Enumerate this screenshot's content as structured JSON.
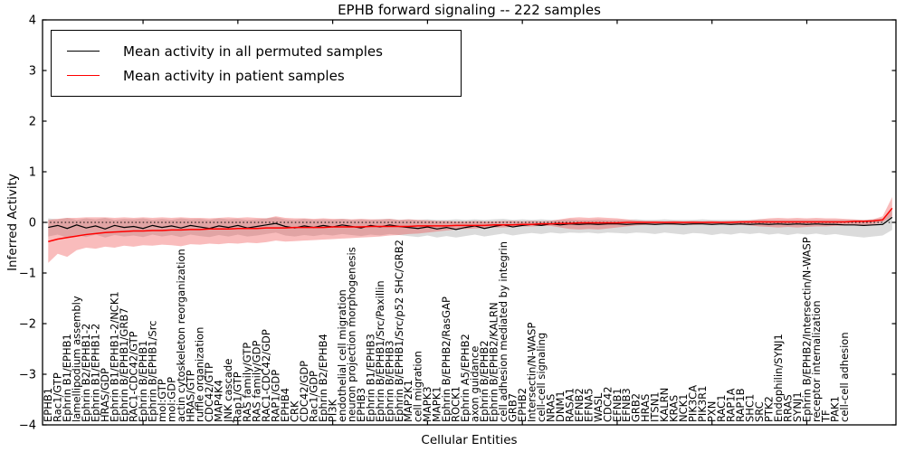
{
  "figure": {
    "title": "EPHB forward signaling -- 222 samples",
    "xlabel": "Cellular Entities",
    "ylabel": "Inferred Activity"
  },
  "legend": {
    "entries": [
      {
        "label": "Mean activity in all permuted samples",
        "color": "#000000"
      },
      {
        "label": "Mean activity in patient samples",
        "color": "#ff0000"
      }
    ]
  },
  "chart_data": {
    "type": "line",
    "title": "EPHB forward signaling -- 222 samples",
    "xlabel": "Cellular Entities",
    "ylabel": "Inferred Activity",
    "ylim": [
      -4,
      4
    ],
    "y_tick_values": [
      -4,
      -3,
      -2,
      -1,
      0,
      1,
      2,
      3,
      4
    ],
    "y_tick_labels": [
      "−4",
      "−3",
      "−2",
      "−1",
      "0",
      "1",
      "2",
      "3",
      "4"
    ],
    "x_major_tick_every": 10,
    "grid": false,
    "legend_position": "upper left",
    "zero_line": {
      "y": 0,
      "style": "dotted",
      "color": "#000000"
    },
    "categories": [
      "EPHB1",
      "Rac1/GTP",
      "Ephrin B1/EPHB1",
      "lamellipodium assembly",
      "Ephrin B2/EPHB1-2",
      "Ephrin B1/EPHB1-2",
      "HRAS/GDP",
      "Ephrin B1/EPHB1-2/NCK1",
      "Ephrin B/EPHB1/GRB7",
      "RAC1-CDC42/GTP",
      "Ephrin B/EPHB1",
      "Ephrin B/EPHB1/Src",
      "mol:GTP",
      "mol:GDP",
      "actin cytoskeleton reorganization",
      "HRAS/GTP",
      "ruffle organization",
      "CDC42/GTP",
      "MAP4K4",
      "JNK cascade",
      "Rap1/GTP",
      "RAS family/GTP",
      "RAS family/GDP",
      "RAC1-CDC42/GDP",
      "RAP1/GDP",
      "EPHB4",
      "CRK",
      "CDC42/GDP",
      "Rac1/GDP",
      "Ephrin B2/EPHB4",
      "PI3K",
      "endothelial cell migration",
      "neuron projection morphogenesis",
      "EPHB3",
      "Ephrin B1/EPHB3",
      "Ephrin B/EPHB1/Src/Paxillin",
      "Ephrin B/EPHB3",
      "Ephrin B/EPHB1/Src/p52 SHC/GRB2",
      "MAP2K1",
      "cell migration",
      "MAPK3",
      "MAPK1",
      "Ephrin B/EPHB2/RasGAP",
      "ROCK1",
      "Ephrin A5/EPHB2",
      "axon guidance",
      "Ephrin B/EPHB2",
      "Ephrin B/EPHB2/KALRN",
      "cell adhesion mediated by integrin",
      "GRB7",
      "EPHB2",
      "Intersectin/N-WASP",
      "cell-cell signaling",
      "NRAS",
      "DNM1",
      "RASA1",
      "EFNB2",
      "EFNA5",
      "WASL",
      "CDC42",
      "EFNB1",
      "EFNB3",
      "GRB2",
      "HRAS",
      "ITSN1",
      "KALRN",
      "KRAS",
      "NCK1",
      "PIK3CA",
      "PIK3R1",
      "PXN",
      "RAC1",
      "RAP1A",
      "RAP1B",
      "SHC1",
      "SRC",
      "PTK2",
      "Endophilin/SYNJ1",
      "RRAS",
      "SYNJ1",
      "Ephrin B/EPHB2/Intersectin/N-WASP",
      "receptor internalization",
      "TF",
      "PAK1",
      "cell-cell adhesion"
    ],
    "unlabeled_trailing_points": 5,
    "series": [
      {
        "name": "Mean activity in all permuted samples",
        "color": "#000000",
        "band_color": "#999999",
        "band_opacity": 0.35,
        "values": [
          -0.1,
          -0.06,
          -0.12,
          -0.05,
          -0.11,
          -0.07,
          -0.13,
          -0.06,
          -0.1,
          -0.08,
          -0.12,
          -0.06,
          -0.1,
          -0.07,
          -0.11,
          -0.06,
          -0.09,
          -0.12,
          -0.07,
          -0.1,
          -0.06,
          -0.11,
          -0.08,
          -0.05,
          -0.02,
          -0.08,
          -0.11,
          -0.07,
          -0.1,
          -0.06,
          -0.09,
          -0.05,
          -0.08,
          -0.11,
          -0.06,
          -0.09,
          -0.05,
          -0.08,
          -0.1,
          -0.12,
          -0.09,
          -0.13,
          -0.1,
          -0.14,
          -0.1,
          -0.07,
          -0.12,
          -0.08,
          -0.05,
          -0.09,
          -0.06,
          -0.04,
          -0.06,
          -0.03,
          -0.05,
          -0.03,
          -0.04,
          -0.03,
          -0.04,
          -0.03,
          -0.03,
          -0.04,
          -0.03,
          -0.03,
          -0.04,
          -0.03,
          -0.03,
          -0.04,
          -0.03,
          -0.03,
          -0.04,
          -0.03,
          -0.04,
          -0.03,
          -0.04,
          -0.03,
          -0.04,
          -0.03,
          -0.04,
          -0.03,
          -0.04,
          -0.03,
          -0.04,
          -0.04,
          -0.05,
          -0.05,
          -0.06,
          -0.05,
          -0.04,
          0.1
        ],
        "band_upper": [
          0.08,
          0.06,
          0.09,
          0.05,
          0.08,
          0.06,
          0.09,
          0.05,
          0.07,
          0.06,
          0.08,
          0.05,
          0.07,
          0.05,
          0.08,
          0.06,
          0.07,
          0.05,
          0.08,
          0.06,
          0.07,
          0.05,
          0.06,
          0.08,
          0.1,
          0.06,
          0.05,
          0.07,
          0.05,
          0.06,
          0.05,
          0.07,
          0.05,
          0.06,
          0.05,
          0.06,
          0.07,
          0.05,
          0.06,
          0.05,
          0.06,
          0.05,
          0.05,
          0.06,
          0.05,
          0.06,
          0.05,
          0.06,
          0.07,
          0.05,
          0.06,
          0.05,
          0.06,
          0.05,
          0.05,
          0.06,
          0.05,
          0.05,
          0.06,
          0.05,
          0.05,
          0.05,
          0.06,
          0.05,
          0.05,
          0.06,
          0.05,
          0.05,
          0.05,
          0.06,
          0.05,
          0.05,
          0.05,
          0.05,
          0.05,
          0.06,
          0.05,
          0.05,
          0.05,
          0.05,
          0.05,
          0.05,
          0.05,
          0.05,
          0.05,
          0.05,
          0.05,
          0.06,
          0.08,
          0.25
        ],
        "band_lower": [
          -0.28,
          -0.24,
          -0.3,
          -0.25,
          -0.29,
          -0.24,
          -0.3,
          -0.25,
          -0.28,
          -0.26,
          -0.29,
          -0.24,
          -0.28,
          -0.25,
          -0.29,
          -0.24,
          -0.27,
          -0.29,
          -0.25,
          -0.28,
          -0.24,
          -0.28,
          -0.26,
          -0.23,
          -0.2,
          -0.26,
          -0.28,
          -0.25,
          -0.27,
          -0.24,
          -0.26,
          -0.23,
          -0.25,
          -0.27,
          -0.24,
          -0.26,
          -0.23,
          -0.25,
          -0.27,
          -0.29,
          -0.26,
          -0.3,
          -0.27,
          -0.3,
          -0.27,
          -0.24,
          -0.28,
          -0.25,
          -0.22,
          -0.26,
          -0.23,
          -0.21,
          -0.23,
          -0.2,
          -0.22,
          -0.2,
          -0.21,
          -0.2,
          -0.22,
          -0.2,
          -0.21,
          -0.22,
          -0.2,
          -0.21,
          -0.23,
          -0.2,
          -0.22,
          -0.24,
          -0.21,
          -0.22,
          -0.25,
          -0.22,
          -0.24,
          -0.21,
          -0.23,
          -0.21,
          -0.24,
          -0.22,
          -0.25,
          -0.22,
          -0.24,
          -0.22,
          -0.25,
          -0.23,
          -0.26,
          -0.28,
          -0.3,
          -0.28,
          -0.26,
          -0.15
        ]
      },
      {
        "name": "Mean activity in patient samples",
        "color": "#ff0000",
        "band_color": "#ee3333",
        "band_opacity": 0.33,
        "values": [
          -0.38,
          -0.33,
          -0.3,
          -0.27,
          -0.24,
          -0.22,
          -0.2,
          -0.19,
          -0.18,
          -0.17,
          -0.17,
          -0.16,
          -0.16,
          -0.15,
          -0.15,
          -0.14,
          -0.14,
          -0.13,
          -0.13,
          -0.13,
          -0.12,
          -0.12,
          -0.12,
          -0.11,
          -0.11,
          -0.11,
          -0.1,
          -0.1,
          -0.1,
          -0.1,
          -0.09,
          -0.09,
          -0.09,
          -0.09,
          -0.08,
          -0.08,
          -0.08,
          -0.08,
          -0.08,
          -0.07,
          -0.07,
          -0.07,
          -0.07,
          -0.06,
          -0.06,
          -0.06,
          -0.06,
          -0.05,
          -0.05,
          -0.05,
          -0.04,
          -0.04,
          -0.03,
          -0.03,
          -0.02,
          -0.02,
          -0.01,
          -0.01,
          -0.01,
          -0.01,
          -0.01,
          0.0,
          0.0,
          0.0,
          0.0,
          0.0,
          0.0,
          0.0,
          0.0,
          0.0,
          0.0,
          0.0,
          0.0,
          0.01,
          0.01,
          0.01,
          0.01,
          0.01,
          0.01,
          0.01,
          0.01,
          0.01,
          0.01,
          0.01,
          0.01,
          0.02,
          0.02,
          0.03,
          0.05,
          0.28
        ],
        "band_upper": [
          0.05,
          0.07,
          0.09,
          0.09,
          0.1,
          0.1,
          0.1,
          0.09,
          0.1,
          0.09,
          0.1,
          0.09,
          0.1,
          0.09,
          0.1,
          0.09,
          0.09,
          0.08,
          0.09,
          0.1,
          0.09,
          0.1,
          0.09,
          0.08,
          0.12,
          0.09,
          0.08,
          0.08,
          0.07,
          0.08,
          0.07,
          0.07,
          0.06,
          0.07,
          0.06,
          0.06,
          0.07,
          0.05,
          0.06,
          0.05,
          0.04,
          0.03,
          0.03,
          0.02,
          0.02,
          0.03,
          0.02,
          0.02,
          0.03,
          0.03,
          0.02,
          0.03,
          0.02,
          0.03,
          0.06,
          0.09,
          0.1,
          0.09,
          0.1,
          0.09,
          0.08,
          0.06,
          0.04,
          0.03,
          0.03,
          0.02,
          0.03,
          0.02,
          0.03,
          0.02,
          0.03,
          0.02,
          0.03,
          0.03,
          0.04,
          0.06,
          0.08,
          0.09,
          0.08,
          0.09,
          0.08,
          0.09,
          0.08,
          0.08,
          0.07,
          0.06,
          0.05,
          0.06,
          0.12,
          0.5
        ],
        "band_lower": [
          -0.8,
          -0.62,
          -0.68,
          -0.55,
          -0.5,
          -0.52,
          -0.48,
          -0.5,
          -0.46,
          -0.48,
          -0.45,
          -0.46,
          -0.44,
          -0.45,
          -0.47,
          -0.43,
          -0.44,
          -0.42,
          -0.43,
          -0.41,
          -0.42,
          -0.4,
          -0.41,
          -0.39,
          -0.36,
          -0.38,
          -0.37,
          -0.36,
          -0.35,
          -0.34,
          -0.33,
          -0.32,
          -0.31,
          -0.3,
          -0.29,
          -0.28,
          -0.26,
          -0.25,
          -0.23,
          -0.22,
          -0.2,
          -0.18,
          -0.16,
          -0.14,
          -0.13,
          -0.12,
          -0.11,
          -0.1,
          -0.1,
          -0.09,
          -0.08,
          -0.08,
          -0.07,
          -0.07,
          -0.1,
          -0.13,
          -0.14,
          -0.13,
          -0.14,
          -0.12,
          -0.1,
          -0.08,
          -0.06,
          -0.05,
          -0.05,
          -0.04,
          -0.05,
          -0.04,
          -0.05,
          -0.04,
          -0.04,
          -0.04,
          -0.05,
          -0.05,
          -0.06,
          -0.08,
          -0.09,
          -0.1,
          -0.09,
          -0.1,
          -0.09,
          -0.08,
          -0.08,
          -0.07,
          -0.06,
          -0.05,
          -0.05,
          -0.04,
          0.0,
          0.12
        ]
      }
    ]
  }
}
